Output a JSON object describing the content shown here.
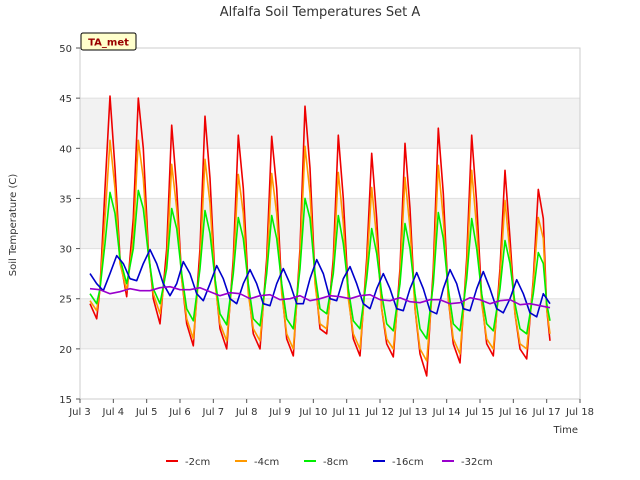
{
  "chart_data": {
    "type": "line",
    "title": "Alfalfa Soil Temperatures Set A",
    "xlabel": "Time",
    "ylabel": "Soil Temperature (C)",
    "badge": "TA_met",
    "ylim": [
      15,
      50
    ],
    "yticks": [
      15,
      20,
      25,
      30,
      35,
      40,
      45,
      50
    ],
    "xlim": [
      3,
      18
    ],
    "xticks": [
      {
        "value": 3,
        "label": "Jul 3"
      },
      {
        "value": 4,
        "label": "Jul 4"
      },
      {
        "value": 5,
        "label": "Jul 5"
      },
      {
        "value": 6,
        "label": "Jul 6"
      },
      {
        "value": 7,
        "label": "Jul 7"
      },
      {
        "value": 8,
        "label": "Jul 8"
      },
      {
        "value": 9,
        "label": "Jul 9"
      },
      {
        "value": 10,
        "label": "Jul 10"
      },
      {
        "value": 11,
        "label": "Jul 11"
      },
      {
        "value": 12,
        "label": "Jul 12"
      },
      {
        "value": 13,
        "label": "Jul 13"
      },
      {
        "value": 14,
        "label": "Jul 14"
      },
      {
        "value": 15,
        "label": "Jul 15"
      },
      {
        "value": 16,
        "label": "Jul 16"
      },
      {
        "value": 17,
        "label": "Jul 17"
      },
      {
        "value": 18,
        "label": "Jul 18"
      }
    ],
    "grid": true,
    "legend_position": "bottom",
    "series": [
      {
        "name": "-2cm",
        "color": "#ee0000",
        "x": [
          3.3,
          3.5,
          3.6,
          3.75,
          3.9,
          4.05,
          4.2,
          4.4,
          4.6,
          4.75,
          4.9,
          5.05,
          5.2,
          5.4,
          5.6,
          5.75,
          5.9,
          6.05,
          6.2,
          6.4,
          6.6,
          6.75,
          6.9,
          7.05,
          7.2,
          7.4,
          7.6,
          7.75,
          7.9,
          8.05,
          8.2,
          8.4,
          8.6,
          8.75,
          8.9,
          9.05,
          9.2,
          9.4,
          9.6,
          9.75,
          9.9,
          10.05,
          10.2,
          10.4,
          10.6,
          10.75,
          10.9,
          11.05,
          11.2,
          11.4,
          11.6,
          11.75,
          11.9,
          12.05,
          12.2,
          12.4,
          12.6,
          12.75,
          12.9,
          13.05,
          13.2,
          13.4,
          13.6,
          13.75,
          13.9,
          14.05,
          14.2,
          14.4,
          14.6,
          14.75,
          14.9,
          15.05,
          15.2,
          15.4,
          15.6,
          15.75,
          15.9,
          16.05,
          16.2,
          16.4,
          16.6,
          16.75,
          16.9,
          17.0,
          17.1
        ],
        "y": [
          24.5,
          23.0,
          26.0,
          36.0,
          45.2,
          38.0,
          29.0,
          25.2,
          33.0,
          45.0,
          40.0,
          30.0,
          25.0,
          22.5,
          30.0,
          42.3,
          36.0,
          27.0,
          22.5,
          20.3,
          30.0,
          43.2,
          37.0,
          27.0,
          22.0,
          20.0,
          29.0,
          41.3,
          36.0,
          26.0,
          21.5,
          20.0,
          29.0,
          41.2,
          36.0,
          26.0,
          21.0,
          19.3,
          30.0,
          44.2,
          38.0,
          27.0,
          22.0,
          21.5,
          29.0,
          41.3,
          35.0,
          25.5,
          21.0,
          19.3,
          29.0,
          39.5,
          33.0,
          24.0,
          20.5,
          19.2,
          28.0,
          40.5,
          34.0,
          24.0,
          19.5,
          17.3,
          28.0,
          42.0,
          35.5,
          25.0,
          20.5,
          18.6,
          29.0,
          41.3,
          34.5,
          25.0,
          20.5,
          19.3,
          28.0,
          37.8,
          31.0,
          23.5,
          20.0,
          19.0,
          27.0,
          35.9,
          33.0,
          24.0,
          20.8
        ]
      },
      {
        "name": "-4cm",
        "color": "#ff9900",
        "x": [
          3.3,
          3.5,
          3.6,
          3.75,
          3.9,
          4.05,
          4.2,
          4.4,
          4.6,
          4.75,
          4.9,
          5.05,
          5.2,
          5.4,
          5.6,
          5.75,
          5.9,
          6.05,
          6.2,
          6.4,
          6.6,
          6.75,
          6.9,
          7.05,
          7.2,
          7.4,
          7.6,
          7.75,
          7.9,
          8.05,
          8.2,
          8.4,
          8.6,
          8.75,
          8.9,
          9.05,
          9.2,
          9.4,
          9.6,
          9.75,
          9.9,
          10.05,
          10.2,
          10.4,
          10.6,
          10.75,
          10.9,
          11.05,
          11.2,
          11.4,
          11.6,
          11.75,
          11.9,
          12.05,
          12.2,
          12.4,
          12.6,
          12.75,
          12.9,
          13.05,
          13.2,
          13.4,
          13.6,
          13.75,
          13.9,
          14.05,
          14.2,
          14.4,
          14.6,
          14.75,
          14.9,
          15.05,
          15.2,
          15.4,
          15.6,
          15.75,
          15.9,
          16.05,
          16.2,
          16.4,
          16.6,
          16.75,
          16.9,
          17.0,
          17.1
        ],
        "y": [
          24.8,
          23.8,
          26.0,
          33.0,
          40.8,
          36.0,
          28.5,
          25.8,
          31.0,
          40.8,
          37.0,
          29.5,
          25.5,
          23.5,
          28.5,
          38.4,
          34.0,
          27.0,
          23.0,
          21.0,
          28.5,
          38.9,
          34.5,
          26.5,
          22.5,
          20.8,
          28.0,
          37.4,
          33.5,
          25.5,
          22.0,
          20.8,
          28.0,
          37.5,
          33.5,
          25.5,
          21.5,
          20.0,
          29.0,
          40.2,
          35.5,
          26.5,
          22.5,
          22.0,
          28.0,
          37.6,
          32.5,
          25.0,
          21.5,
          20.0,
          28.0,
          36.1,
          31.0,
          24.0,
          21.0,
          20.0,
          27.0,
          37.1,
          32.0,
          24.0,
          20.0,
          18.8,
          27.0,
          38.3,
          33.0,
          25.0,
          21.0,
          19.5,
          28.0,
          37.8,
          32.0,
          24.5,
          21.0,
          20.0,
          27.0,
          34.8,
          29.5,
          23.5,
          20.5,
          20.0,
          26.5,
          33.1,
          31.0,
          24.0,
          21.5
        ]
      },
      {
        "name": "-8cm",
        "color": "#00ee00",
        "x": [
          3.3,
          3.5,
          3.6,
          3.75,
          3.9,
          4.05,
          4.2,
          4.4,
          4.6,
          4.75,
          4.9,
          5.05,
          5.2,
          5.4,
          5.6,
          5.75,
          5.9,
          6.05,
          6.2,
          6.4,
          6.6,
          6.75,
          6.9,
          7.05,
          7.2,
          7.4,
          7.6,
          7.75,
          7.9,
          8.05,
          8.2,
          8.4,
          8.6,
          8.75,
          8.9,
          9.05,
          9.2,
          9.4,
          9.6,
          9.75,
          9.9,
          10.05,
          10.2,
          10.4,
          10.6,
          10.75,
          10.9,
          11.05,
          11.2,
          11.4,
          11.6,
          11.75,
          11.9,
          12.05,
          12.2,
          12.4,
          12.6,
          12.75,
          12.9,
          13.05,
          13.2,
          13.4,
          13.6,
          13.75,
          13.9,
          14.05,
          14.2,
          14.4,
          14.6,
          14.75,
          14.9,
          15.05,
          15.2,
          15.4,
          15.6,
          15.75,
          15.9,
          16.05,
          16.2,
          16.4,
          16.6,
          16.75,
          16.9,
          17.0,
          17.1
        ],
        "y": [
          25.5,
          24.5,
          26.0,
          30.5,
          35.6,
          33.5,
          29.0,
          26.5,
          30.0,
          35.8,
          34.0,
          29.5,
          26.0,
          24.5,
          28.0,
          34.0,
          32.0,
          27.5,
          24.0,
          22.8,
          28.0,
          33.8,
          31.5,
          27.0,
          23.5,
          22.4,
          27.5,
          33.1,
          31.0,
          26.5,
          23.0,
          22.3,
          27.5,
          33.3,
          31.0,
          26.5,
          23.0,
          22.0,
          28.0,
          35.0,
          33.0,
          27.5,
          24.0,
          23.5,
          27.5,
          33.3,
          30.5,
          26.0,
          22.8,
          22.0,
          27.0,
          32.0,
          29.5,
          25.5,
          22.5,
          21.8,
          26.5,
          32.5,
          30.0,
          25.5,
          22.0,
          21.0,
          26.5,
          33.6,
          31.0,
          26.0,
          22.5,
          21.8,
          27.0,
          33.0,
          30.0,
          25.5,
          22.5,
          21.8,
          26.0,
          30.8,
          28.5,
          24.5,
          22.0,
          21.5,
          25.5,
          29.6,
          28.5,
          24.5,
          22.8
        ]
      },
      {
        "name": "-16cm",
        "color": "#0000cc",
        "x": [
          3.3,
          3.5,
          3.7,
          3.9,
          4.1,
          4.3,
          4.5,
          4.7,
          4.9,
          5.1,
          5.3,
          5.5,
          5.7,
          5.9,
          6.1,
          6.3,
          6.5,
          6.7,
          6.9,
          7.1,
          7.3,
          7.5,
          7.7,
          7.9,
          8.1,
          8.3,
          8.5,
          8.7,
          8.9,
          9.1,
          9.3,
          9.5,
          9.7,
          9.9,
          10.1,
          10.3,
          10.5,
          10.7,
          10.9,
          11.1,
          11.3,
          11.5,
          11.7,
          11.9,
          12.1,
          12.3,
          12.5,
          12.7,
          12.9,
          13.1,
          13.3,
          13.5,
          13.7,
          13.9,
          14.1,
          14.3,
          14.5,
          14.7,
          14.9,
          15.1,
          15.3,
          15.5,
          15.7,
          15.9,
          16.1,
          16.3,
          16.5,
          16.7,
          16.9,
          17.1
        ],
        "y": [
          27.5,
          26.5,
          25.8,
          27.5,
          29.3,
          28.5,
          27.0,
          26.8,
          28.5,
          29.9,
          28.5,
          26.5,
          25.3,
          26.5,
          28.7,
          27.5,
          25.5,
          24.8,
          26.5,
          28.3,
          27.0,
          25.0,
          24.5,
          26.5,
          27.9,
          26.5,
          24.5,
          24.3,
          26.5,
          28.0,
          26.5,
          24.5,
          24.5,
          27.0,
          28.9,
          27.5,
          25.0,
          24.8,
          27.0,
          28.2,
          26.5,
          24.5,
          24.0,
          26.0,
          27.5,
          26.0,
          24.0,
          23.8,
          26.0,
          27.6,
          26.0,
          23.8,
          23.5,
          26.0,
          27.9,
          26.5,
          24.0,
          23.8,
          26.0,
          27.7,
          26.0,
          24.0,
          23.6,
          25.0,
          26.9,
          25.5,
          23.6,
          23.2,
          25.5,
          24.5
        ]
      },
      {
        "name": "-32cm",
        "color": "#9900cc",
        "x": [
          3.3,
          3.6,
          3.9,
          4.2,
          4.5,
          4.8,
          5.1,
          5.4,
          5.7,
          6.0,
          6.3,
          6.6,
          6.9,
          7.2,
          7.5,
          7.8,
          8.1,
          8.4,
          8.7,
          9.0,
          9.3,
          9.6,
          9.9,
          10.2,
          10.5,
          10.8,
          11.1,
          11.4,
          11.7,
          12.0,
          12.3,
          12.6,
          12.9,
          13.2,
          13.5,
          13.8,
          14.1,
          14.4,
          14.7,
          15.0,
          15.3,
          15.6,
          15.9,
          16.2,
          16.5,
          16.8,
          17.1
        ],
        "y": [
          26.0,
          25.9,
          25.5,
          25.7,
          26.0,
          25.8,
          25.8,
          26.1,
          26.2,
          25.9,
          25.9,
          26.1,
          25.7,
          25.3,
          25.6,
          25.5,
          25.0,
          25.3,
          25.4,
          24.9,
          25.0,
          25.3,
          24.8,
          25.0,
          25.3,
          25.2,
          25.0,
          25.3,
          25.4,
          24.9,
          24.8,
          25.1,
          24.7,
          24.6,
          24.9,
          24.9,
          24.5,
          24.6,
          25.1,
          24.9,
          24.5,
          24.8,
          24.9,
          24.4,
          24.5,
          24.3,
          24.1
        ]
      }
    ]
  }
}
